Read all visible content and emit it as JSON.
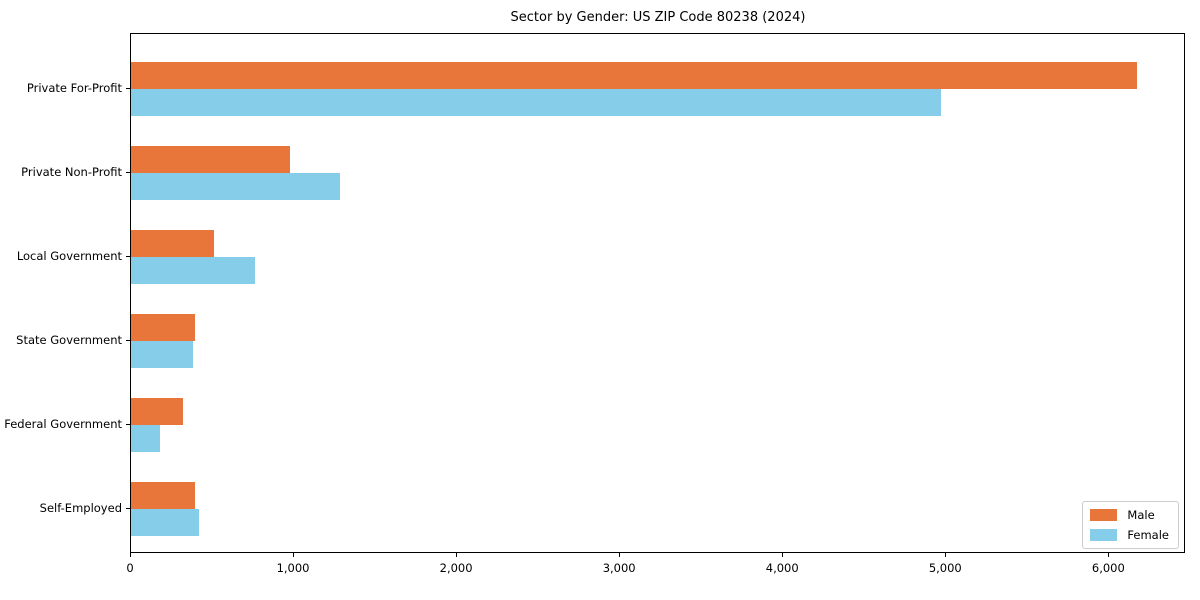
{
  "chart_data": {
    "type": "bar",
    "orientation": "horizontal",
    "title": "Sector by Gender: US ZIP Code 80238 (2024)",
    "categories": [
      "Private For-Profit",
      "Private Non-Profit",
      "Local Government",
      "State Government",
      "Federal Government",
      "Self-Employed"
    ],
    "series": [
      {
        "name": "Male",
        "color": "#e8763b",
        "values": [
          6170,
          975,
          510,
          395,
          320,
          390
        ]
      },
      {
        "name": "Female",
        "color": "#85cde9",
        "values": [
          4970,
          1280,
          760,
          380,
          180,
          420
        ]
      }
    ],
    "xlim": [
      0,
      6470
    ],
    "xticks": [
      0,
      1000,
      2000,
      3000,
      4000,
      5000,
      6000
    ],
    "xtick_labels": [
      "0",
      "1,000",
      "2,000",
      "3,000",
      "4,000",
      "5,000",
      "6,000"
    ],
    "legend_position": "lower right",
    "grid": false,
    "colors": {
      "spine": "#000000",
      "background": "#ffffff",
      "text": "#000000",
      "legend_border": "#cccccc"
    }
  }
}
